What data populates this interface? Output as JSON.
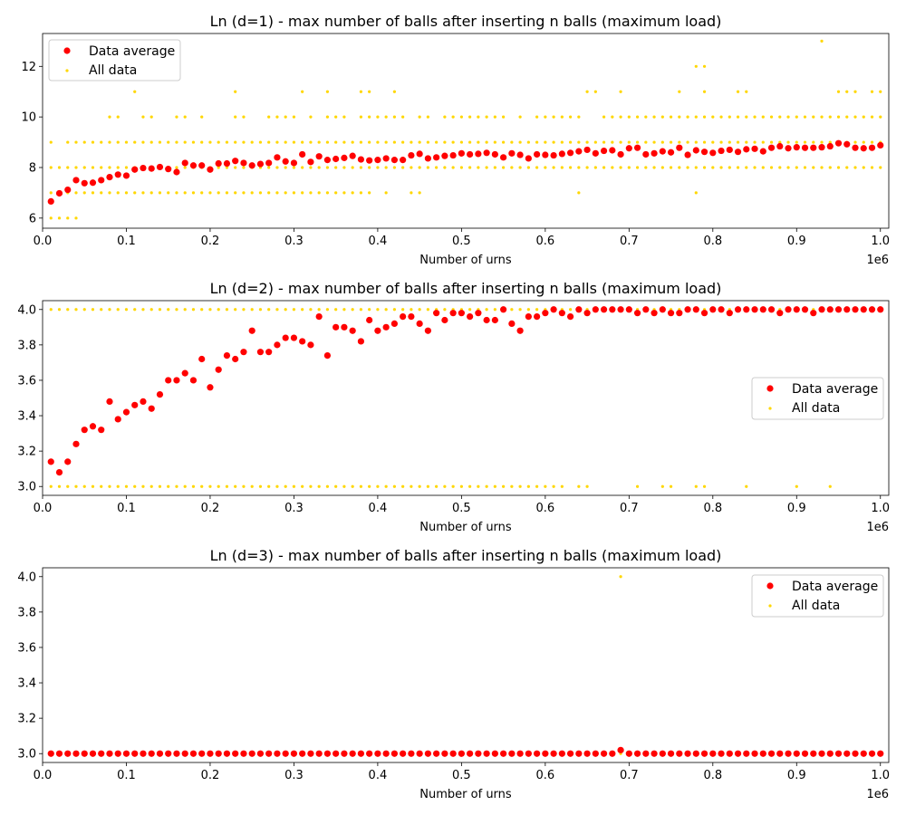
{
  "chart_data": [
    {
      "type": "scatter",
      "title": "Ln (d=1) - max number of balls after inserting n balls (maximum load)",
      "xlabel": "Number of urns",
      "ylabel": "",
      "x_offset_text": "1e6",
      "xlim": [
        0,
        1010000
      ],
      "ylim": [
        5.6,
        13.3
      ],
      "xticks": [
        0,
        0.1,
        0.2,
        0.3,
        0.4,
        0.5,
        0.6,
        0.7,
        0.8,
        0.9,
        1.0
      ],
      "xtick_labels": [
        "0.0",
        "0.1",
        "0.2",
        "0.3",
        "0.4",
        "0.5",
        "0.6",
        "0.7",
        "0.8",
        "0.9",
        "1.0"
      ],
      "yticks": [
        6,
        8,
        10,
        12
      ],
      "ytick_labels": [
        "6",
        "8",
        "10",
        "12"
      ],
      "grid": false,
      "legend_position": "upper-left",
      "series": [
        {
          "name": "Data average",
          "color": "#ff0000",
          "marker": "circle",
          "x_start": 10000,
          "x_step": 10000,
          "y": [
            6.66,
            6.98,
            7.12,
            7.5,
            7.38,
            7.4,
            7.5,
            7.62,
            7.72,
            7.68,
            7.92,
            7.98,
            7.96,
            8.02,
            7.94,
            7.82,
            8.18,
            8.08,
            8.08,
            7.92,
            8.16,
            8.16,
            8.26,
            8.18,
            8.08,
            8.14,
            8.18,
            8.4,
            8.24,
            8.18,
            8.52,
            8.22,
            8.44,
            8.3,
            8.34,
            8.38,
            8.46,
            8.32,
            8.28,
            8.3,
            8.36,
            8.3,
            8.3,
            8.48,
            8.54,
            8.36,
            8.4,
            8.46,
            8.48,
            8.56,
            8.52,
            8.54,
            8.58,
            8.52,
            8.4,
            8.56,
            8.5,
            8.36,
            8.52,
            8.5,
            8.48,
            8.54,
            8.58,
            8.64,
            8.7,
            8.56,
            8.66,
            8.68,
            8.52,
            8.76,
            8.78,
            8.52,
            8.56,
            8.64,
            8.6,
            8.78,
            8.5,
            8.68,
            8.62,
            8.58,
            8.66,
            8.7,
            8.62,
            8.72,
            8.74,
            8.64,
            8.78,
            8.84,
            8.76,
            8.8,
            8.78,
            8.78,
            8.8,
            8.84,
            8.96,
            8.92,
            8.78,
            8.76,
            8.78,
            8.88
          ]
        },
        {
          "name": "All data",
          "color": "#ffd700",
          "marker": "point",
          "x_start": 10000,
          "x_step": 10000,
          "levels": [
            6,
            7,
            8,
            9,
            10,
            11,
            12,
            13
          ],
          "presence": {
            "6": "1111000000000000000000000000000000000000000000000000000000000000000000000000000000000000000000000000",
            "7": "1111111111111111111111111111111111111110100110000000000000000001000000000000010000000000000000000000",
            "8": "1111111111111111111111111111111111111111111111111111111111111111111111111111111111111111111111111111",
            "9": "1011111111111111111111111111111111111111111111111111111111111111111111111111111111111111111111111111",
            "10": "0000000110011001101000110011110101110111111011011111111010111111001111111111111111111111111111111111",
            "11": "0000000000100000000000100000001001000110010000000000000000000000110010000001001000110000000000111011",
            "12": "0000000000000000000000000000000000000000000000000000000000000000000000000000011000000000000000000000",
            "13": "0000000000000000000000000000000000000000000000000000000000000000000000000000000000000000000010000000"
          }
        }
      ]
    },
    {
      "type": "scatter",
      "title": "Ln (d=2) - max number of balls after inserting n balls (maximum load)",
      "xlabel": "Number of urns",
      "ylabel": "",
      "x_offset_text": "1e6",
      "xlim": [
        0,
        1010000
      ],
      "ylim": [
        2.95,
        4.05
      ],
      "xticks": [
        0,
        0.1,
        0.2,
        0.3,
        0.4,
        0.5,
        0.6,
        0.7,
        0.8,
        0.9,
        1.0
      ],
      "xtick_labels": [
        "0.0",
        "0.1",
        "0.2",
        "0.3",
        "0.4",
        "0.5",
        "0.6",
        "0.7",
        "0.8",
        "0.9",
        "1.0"
      ],
      "yticks": [
        3.0,
        3.2,
        3.4,
        3.6,
        3.8,
        4.0
      ],
      "ytick_labels": [
        "3.0",
        "3.2",
        "3.4",
        "3.6",
        "3.8",
        "4.0"
      ],
      "grid": false,
      "legend_position": "center-right",
      "series": [
        {
          "name": "Data average",
          "color": "#ff0000",
          "marker": "circle",
          "x_start": 10000,
          "x_step": 10000,
          "y": [
            3.14,
            3.08,
            3.14,
            3.24,
            3.32,
            3.34,
            3.32,
            3.48,
            3.38,
            3.42,
            3.46,
            3.48,
            3.44,
            3.52,
            3.6,
            3.6,
            3.64,
            3.6,
            3.72,
            3.56,
            3.66,
            3.74,
            3.72,
            3.76,
            3.88,
            3.76,
            3.76,
            3.8,
            3.84,
            3.84,
            3.82,
            3.8,
            3.96,
            3.74,
            3.9,
            3.9,
            3.88,
            3.82,
            3.94,
            3.88,
            3.9,
            3.92,
            3.96,
            3.96,
            3.92,
            3.88,
            3.98,
            3.94,
            3.98,
            3.98,
            3.96,
            3.98,
            3.94,
            3.94,
            4.0,
            3.92,
            3.88,
            3.96,
            3.96,
            3.98,
            4.0,
            3.98,
            3.96,
            4.0,
            3.98,
            4.0,
            4.0,
            4.0,
            4.0,
            4.0,
            3.98,
            4.0,
            3.98,
            4.0,
            3.98,
            3.98,
            4.0,
            4.0,
            3.98,
            4.0,
            4.0,
            3.98,
            4.0,
            4.0,
            4.0,
            4.0,
            4.0,
            3.98,
            4.0,
            4.0,
            4.0,
            3.98,
            4.0,
            4.0,
            4.0,
            4.0,
            4.0,
            4.0,
            4.0,
            4.0
          ]
        },
        {
          "name": "All data",
          "color": "#ffd700",
          "marker": "point",
          "x_start": 10000,
          "x_step": 10000,
          "levels": [
            3,
            4
          ],
          "presence": {
            "3": "1111111111111111111111111111111111111111111111111111111111111101100000100110011000010000010001000000",
            "4": "1111111111111111111111111111111111111111111111111111111111111111111111111111111111111111111111111111"
          }
        }
      ]
    },
    {
      "type": "scatter",
      "title": "Ln (d=3) - max number of balls after inserting n balls (maximum load)",
      "xlabel": "Number of urns",
      "ylabel": "",
      "x_offset_text": "1e6",
      "xlim": [
        0,
        1010000
      ],
      "ylim": [
        2.95,
        4.05
      ],
      "xticks": [
        0,
        0.1,
        0.2,
        0.3,
        0.4,
        0.5,
        0.6,
        0.7,
        0.8,
        0.9,
        1.0
      ],
      "xtick_labels": [
        "0.0",
        "0.1",
        "0.2",
        "0.3",
        "0.4",
        "0.5",
        "0.6",
        "0.7",
        "0.8",
        "0.9",
        "1.0"
      ],
      "yticks": [
        3.0,
        3.2,
        3.4,
        3.6,
        3.8,
        4.0
      ],
      "ytick_labels": [
        "3.0",
        "3.2",
        "3.4",
        "3.6",
        "3.8",
        "4.0"
      ],
      "grid": false,
      "legend_position": "upper-right",
      "series": [
        {
          "name": "Data average",
          "color": "#ff0000",
          "marker": "circle",
          "x_start": 10000,
          "x_step": 10000,
          "y": [
            3.0,
            3.0,
            3.0,
            3.0,
            3.0,
            3.0,
            3.0,
            3.0,
            3.0,
            3.0,
            3.0,
            3.0,
            3.0,
            3.0,
            3.0,
            3.0,
            3.0,
            3.0,
            3.0,
            3.0,
            3.0,
            3.0,
            3.0,
            3.0,
            3.0,
            3.0,
            3.0,
            3.0,
            3.0,
            3.0,
            3.0,
            3.0,
            3.0,
            3.0,
            3.0,
            3.0,
            3.0,
            3.0,
            3.0,
            3.0,
            3.0,
            3.0,
            3.0,
            3.0,
            3.0,
            3.0,
            3.0,
            3.0,
            3.0,
            3.0,
            3.0,
            3.0,
            3.0,
            3.0,
            3.0,
            3.0,
            3.0,
            3.0,
            3.0,
            3.0,
            3.0,
            3.0,
            3.0,
            3.0,
            3.0,
            3.0,
            3.0,
            3.0,
            3.02,
            3.0,
            3.0,
            3.0,
            3.0,
            3.0,
            3.0,
            3.0,
            3.0,
            3.0,
            3.0,
            3.0,
            3.0,
            3.0,
            3.0,
            3.0,
            3.0,
            3.0,
            3.0,
            3.0,
            3.0,
            3.0,
            3.0,
            3.0,
            3.0,
            3.0,
            3.0,
            3.0,
            3.0,
            3.0,
            3.0,
            3.0
          ]
        },
        {
          "name": "All data",
          "color": "#ffd700",
          "marker": "point",
          "x_start": 10000,
          "x_step": 10000,
          "levels": [
            3,
            4
          ],
          "presence": {
            "3": "1111111111111111111111111111111111111111111111111111111111111111111111111111111111111111111111111111",
            "4": "0000000000000000000000000000000000000000000000000000000000000000000010000000000000000000000000000000"
          }
        }
      ]
    }
  ]
}
